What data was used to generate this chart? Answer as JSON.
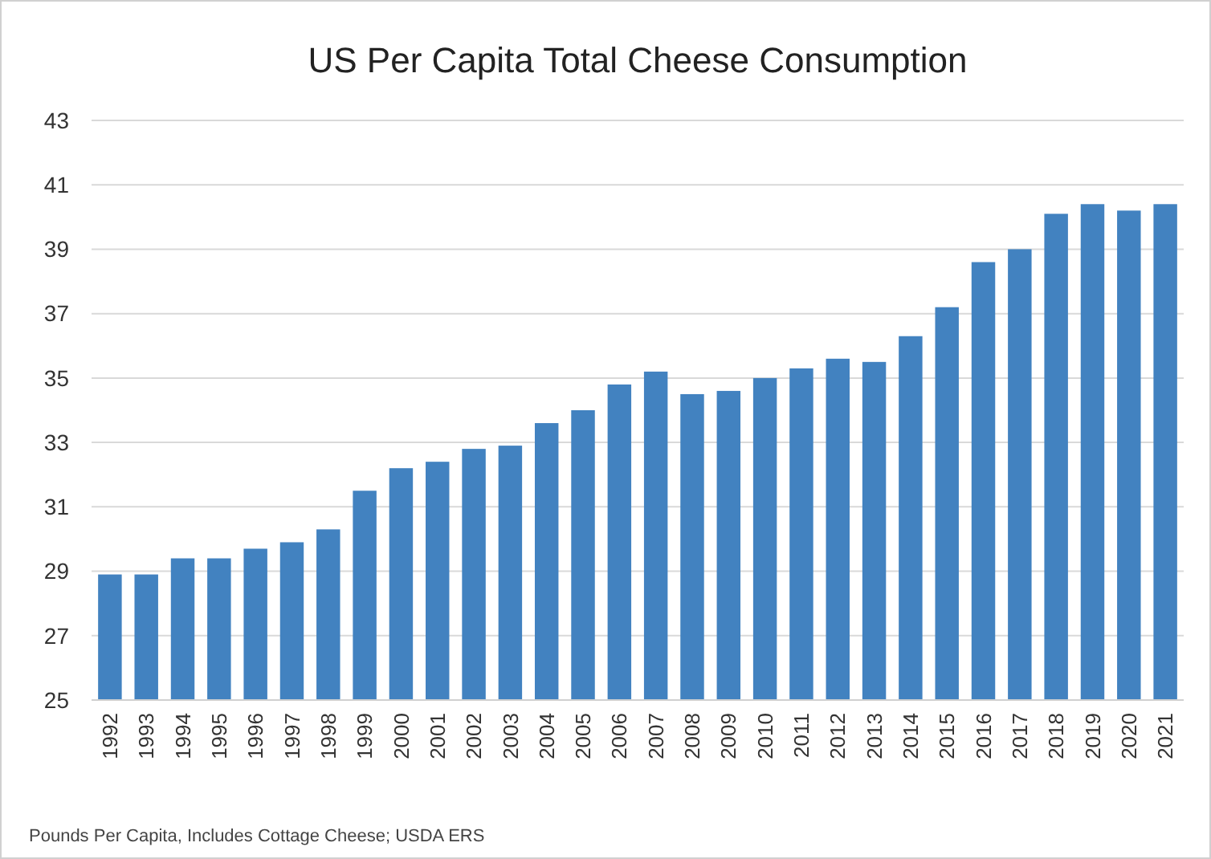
{
  "chart_data": {
    "type": "bar",
    "title": "US Per Capita Total Cheese Consumption",
    "categories": [
      "1992",
      "1993",
      "1994",
      "1995",
      "1996",
      "1997",
      "1998",
      "1999",
      "2000",
      "2001",
      "2002",
      "2003",
      "2004",
      "2005",
      "2006",
      "2007",
      "2008",
      "2009",
      "2010",
      "2011",
      "2012",
      "2013",
      "2014",
      "2015",
      "2016",
      "2017",
      "2018",
      "2019",
      "2020",
      "2021"
    ],
    "values": [
      28.9,
      28.9,
      29.4,
      29.4,
      29.7,
      29.9,
      30.3,
      31.5,
      32.2,
      32.4,
      32.8,
      32.9,
      33.6,
      34.0,
      34.8,
      35.2,
      34.5,
      34.6,
      35.0,
      35.3,
      35.6,
      35.5,
      36.3,
      37.2,
      38.6,
      39.0,
      40.1,
      40.4,
      40.2,
      40.4
    ],
    "color": "#4282c0",
    "ylim": [
      25,
      43
    ],
    "yticks": [
      25,
      27,
      29,
      31,
      33,
      35,
      37,
      39,
      41,
      43
    ],
    "grid": "y",
    "annotations": [
      "Pounds Per Capita, Includes Cottage Cheese; USDA ERS"
    ]
  }
}
